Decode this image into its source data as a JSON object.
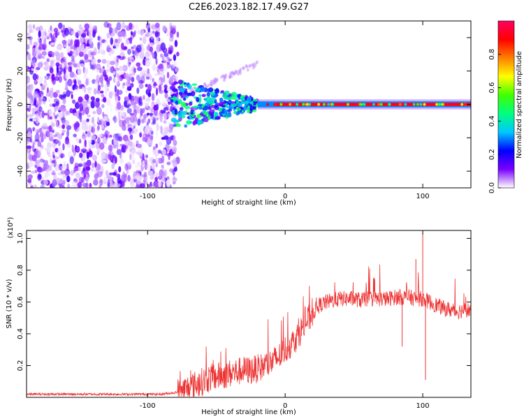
{
  "chart_data": [
    {
      "type": "heatmap",
      "title": "C2E6.2023.182.17.49.G27",
      "xlabel": "Height of straight line (km)",
      "ylabel": "Frequency (Hz)",
      "xlim": [
        -188,
        135
      ],
      "ylim": [
        -50,
        50
      ],
      "x_ticks": [
        -100,
        0,
        100
      ],
      "y_ticks": [
        -40,
        -20,
        0,
        20,
        40
      ],
      "colorbar": {
        "label": "Normalized spectral amplitude",
        "range": [
          0,
          1
        ],
        "ticks": [
          0.0,
          0.2,
          0.4,
          0.6,
          0.8
        ],
        "colormap": [
          "#ffffff",
          "#7a00ff",
          "#0000ff",
          "#00c8ff",
          "#00ff80",
          "#40ff00",
          "#ffff00",
          "#ff8000",
          "#ff0000",
          "#ff0060"
        ]
      },
      "regions": [
        {
          "x_range": [
            -188,
            -78
          ],
          "freq_range": [
            -50,
            48
          ],
          "amplitude": "low, diffuse noise"
        },
        {
          "x_range": [
            -82,
            -20
          ],
          "freq_range": [
            -15,
            15
          ],
          "amplitude": "mixed 0.2-0.5, drifting toward 0 Hz"
        },
        {
          "x_range": [
            -20,
            135
          ],
          "freq_center": 0,
          "amplitude": "high 0.8-1.0, narrow line at 0 Hz"
        }
      ]
    },
    {
      "type": "line",
      "xlabel": "Height of straight line (km)",
      "ylabel": "SNR (10 * v/v)",
      "y_multiplier": "(x10⁴)",
      "xlim": [
        -188,
        135
      ],
      "ylim": [
        0,
        1.05
      ],
      "x_ticks": [
        -100,
        0,
        100
      ],
      "y_ticks": [
        0.2,
        0.4,
        0.6,
        0.8,
        1.0
      ],
      "color": "#ee3333",
      "series": [
        {
          "x": [
            -188,
            -170,
            -150,
            -130,
            -110,
            -90,
            -80,
            -75,
            -70,
            -65,
            -60,
            -55,
            -50,
            -45,
            -40,
            -35,
            -30,
            -25,
            -20,
            -15,
            -10,
            -5,
            0,
            5,
            10,
            15,
            20,
            25,
            30,
            35,
            40,
            45,
            50,
            55,
            60,
            65,
            70,
            75,
            80,
            85,
            90,
            95,
            100,
            105,
            110,
            115,
            120,
            125,
            130,
            135
          ],
          "values": [
            0.02,
            0.02,
            0.02,
            0.02,
            0.02,
            0.02,
            0.03,
            0.04,
            0.06,
            0.08,
            0.1,
            0.12,
            0.13,
            0.14,
            0.15,
            0.16,
            0.17,
            0.17,
            0.18,
            0.2,
            0.22,
            0.25,
            0.3,
            0.34,
            0.4,
            0.47,
            0.53,
            0.58,
            0.6,
            0.61,
            0.62,
            0.62,
            0.62,
            0.61,
            0.62,
            0.62,
            0.62,
            0.62,
            0.63,
            0.63,
            0.63,
            0.62,
            0.62,
            0.6,
            0.58,
            0.56,
            0.55,
            0.54,
            0.55,
            0.55
          ]
        }
      ],
      "spikes": [
        {
          "x": 100,
          "value": 1.03
        },
        {
          "x": 102,
          "value": 0.11
        },
        {
          "x": 85,
          "value": 0.32
        },
        {
          "x": 95,
          "value": 0.87
        }
      ]
    }
  ]
}
